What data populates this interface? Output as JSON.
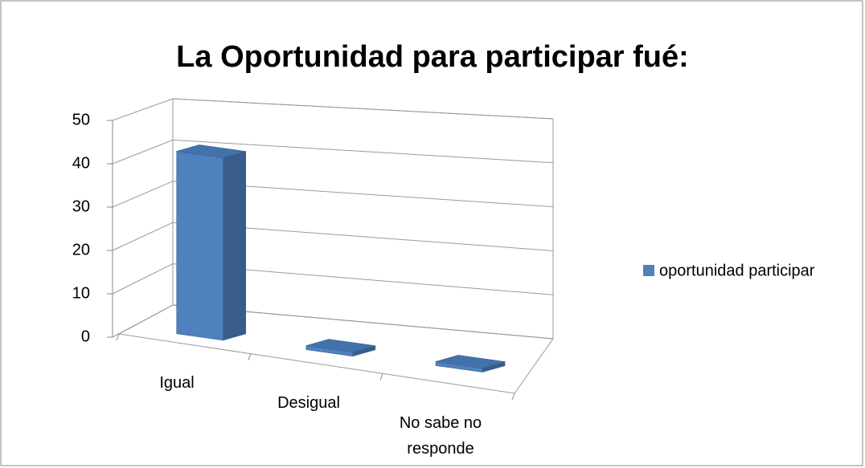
{
  "chart_data": {
    "type": "bar",
    "title": "La Oportunidad para participar fué:",
    "categories": [
      "Igual",
      "Desigual",
      "No sabe no responde"
    ],
    "series": [
      {
        "name": "oportunidad participar",
        "color": "#4f81bd",
        "values": [
          42,
          0,
          0
        ]
      }
    ],
    "ylim": [
      0,
      50
    ],
    "yticks": [
      0,
      10,
      20,
      30,
      40,
      50
    ],
    "grid": true,
    "legend": "right"
  }
}
